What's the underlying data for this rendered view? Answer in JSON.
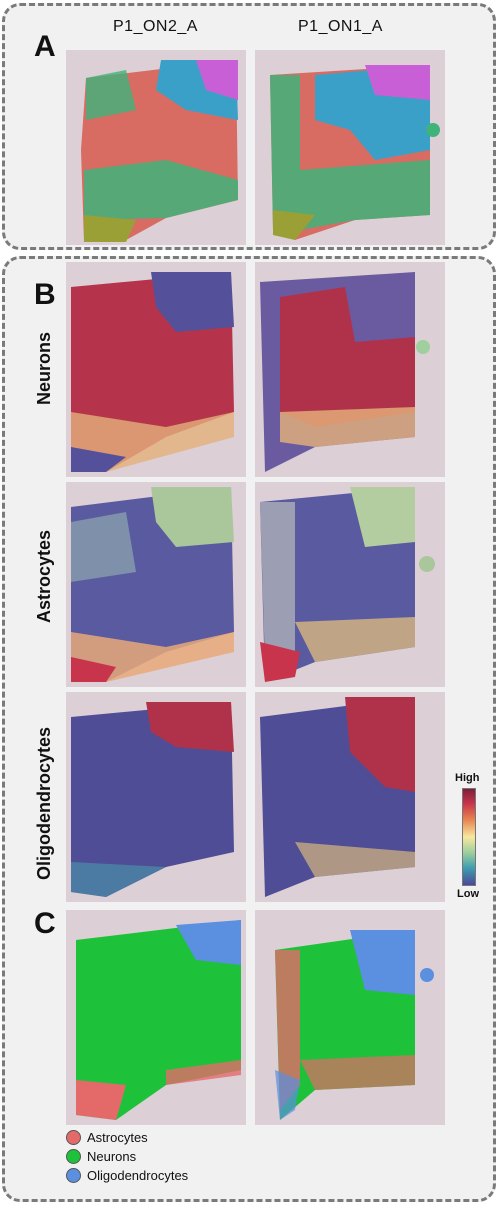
{
  "panels": {
    "a": {
      "letter": "A"
    },
    "b": {
      "letter": "B"
    },
    "c": {
      "letter": "C"
    }
  },
  "columns": [
    "P1_ON2_A",
    "P1_ON1_A"
  ],
  "rows": [
    "Neurons",
    "Astrocytes",
    "Oligodendrocytes"
  ],
  "colorbar": {
    "high": "High",
    "low": "Low"
  },
  "legend": [
    {
      "label": "Astrocytes",
      "color": "#e46a6a"
    },
    {
      "label": "Neurons",
      "color": "#1ec23a"
    },
    {
      "label": "Oligodendrocytes",
      "color": "#5b8fe0"
    }
  ],
  "colors": {
    "tissue_bg": "#d9ccd3",
    "box_border": "#7a7a7a",
    "low": "#4a4898",
    "high": "#7b1e3a",
    "cluster_palette": [
      "#e0665e",
      "#3fb37a",
      "#3ba0c8",
      "#c95fd6",
      "#9aa035",
      "#d07a9a"
    ]
  }
}
